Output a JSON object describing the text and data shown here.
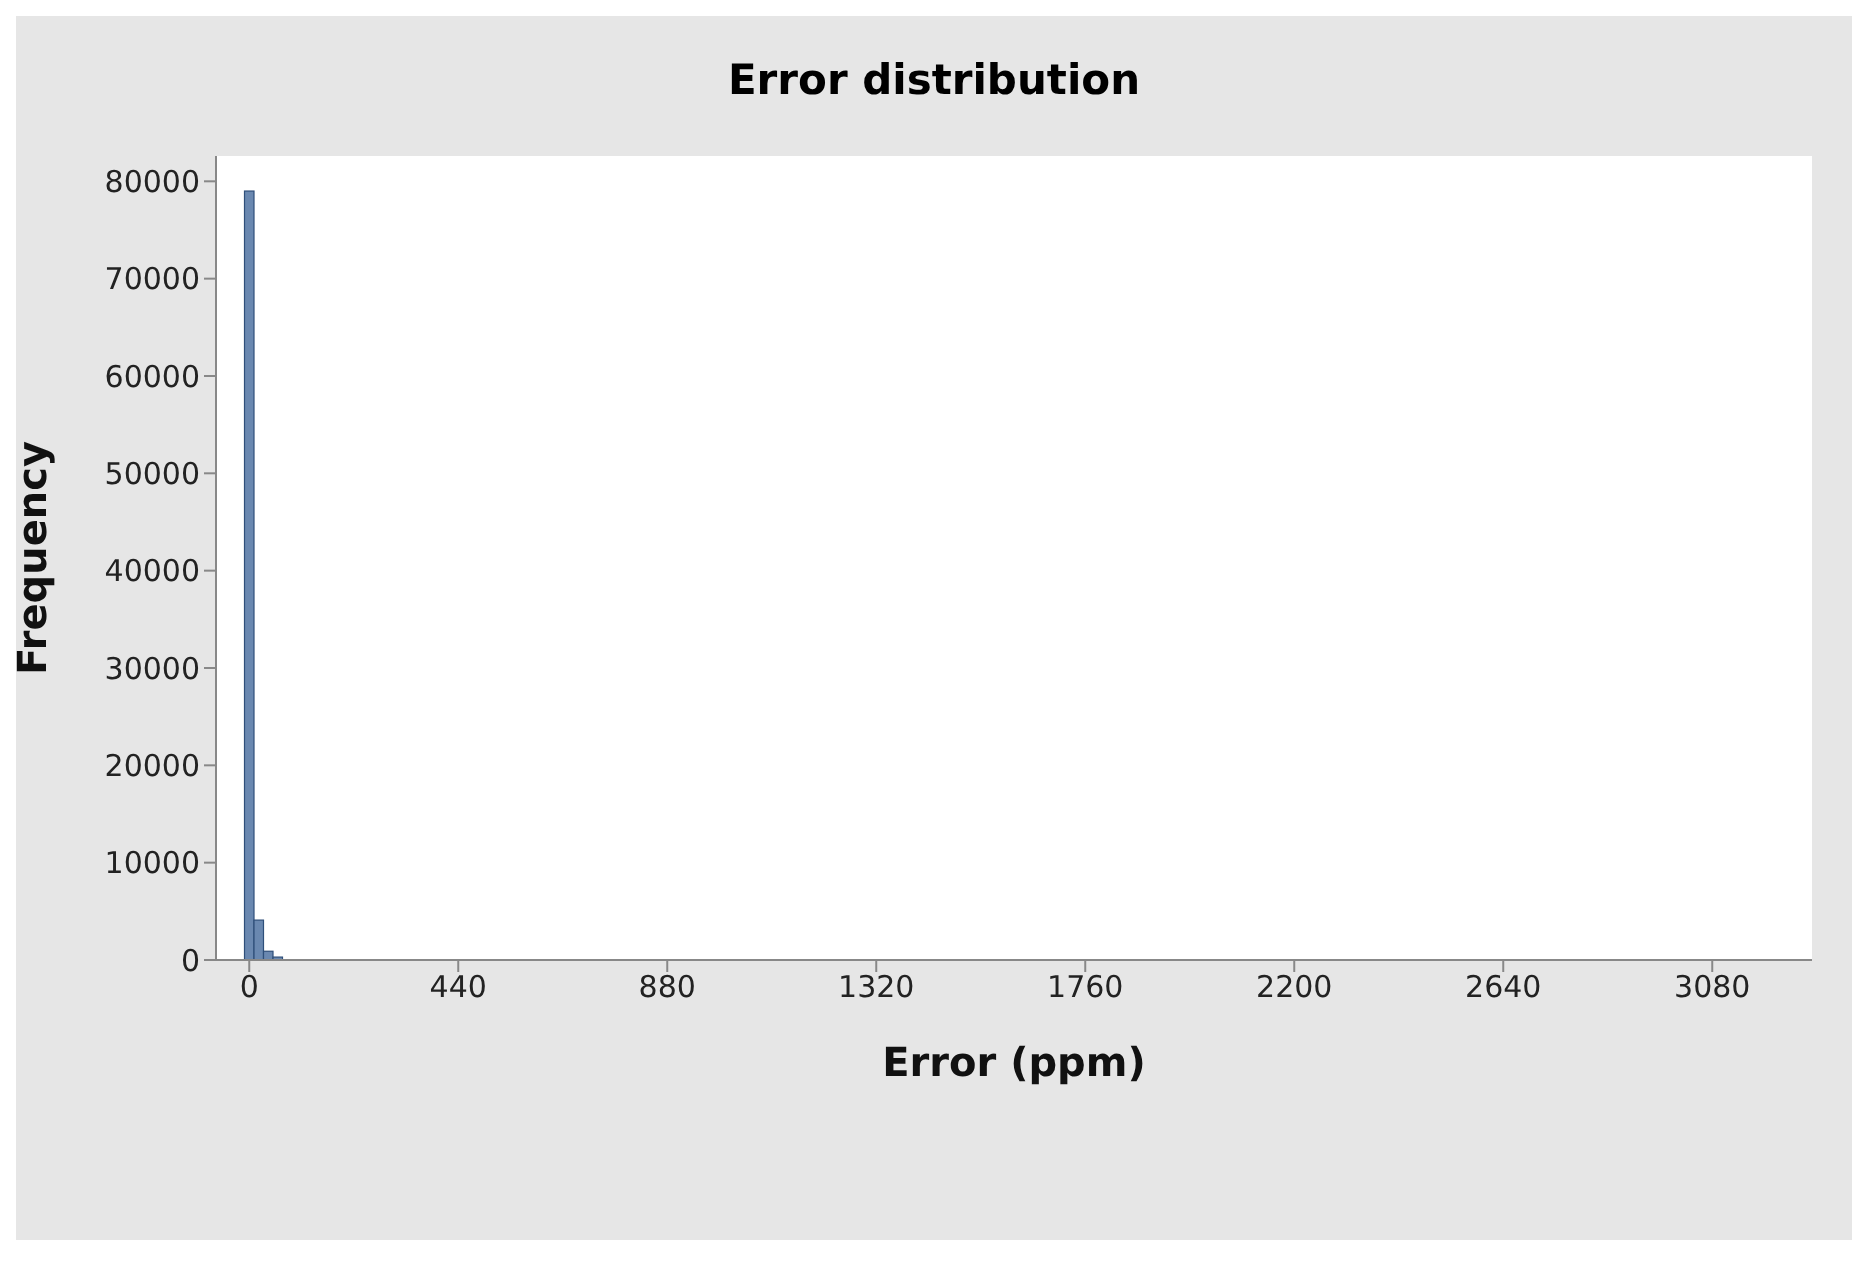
{
  "chart_data": {
    "type": "histogram",
    "title": "Error distribution",
    "xlabel": "Error (ppm)",
    "ylabel": "Frequency",
    "bins": [
      -10,
      10,
      30,
      50,
      70,
      90
    ],
    "values": [
      79000,
      4100,
      900,
      300,
      null
    ],
    "color": "#6a88b0",
    "xlim": [
      -70,
      3290
    ],
    "xticks": [
      0,
      440,
      880,
      1320,
      1760,
      2200,
      2640,
      3080
    ],
    "ylim": [
      0,
      82600
    ],
    "yticks": [
      0,
      10000,
      20000,
      30000,
      40000,
      50000,
      60000,
      70000,
      80000
    ],
    "grid": false,
    "legend": false
  }
}
